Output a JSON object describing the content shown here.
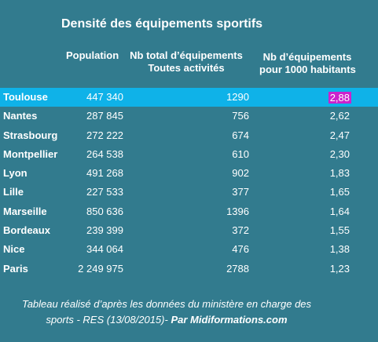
{
  "chart_data": {
    "type": "table",
    "title": "Densité des équipements sportifs",
    "columns": [
      "Population",
      "Nb total d'équipements\nToutes activités",
      "Nb d'équipements\npour 1000 habitants"
    ],
    "highlight_row": "Toulouse",
    "highlight_color": "#0fb2e8",
    "highlight_value_color": "#cc22cc",
    "background_color": "#327b8e",
    "rows": [
      {
        "city": "Toulouse",
        "population": "447 340",
        "equipements": "1290",
        "ratio": "2,88"
      },
      {
        "city": "Nantes",
        "population": "287 845",
        "equipements": "756",
        "ratio": "2,62"
      },
      {
        "city": "Strasbourg",
        "population": "272 222",
        "equipements": "674",
        "ratio": "2,47"
      },
      {
        "city": "Montpellier",
        "population": "264 538",
        "equipements": "610",
        "ratio": "2,30"
      },
      {
        "city": "Lyon",
        "population": "491 268",
        "equipements": "902",
        "ratio": "1,83"
      },
      {
        "city": "Lille",
        "population": "227 533",
        "equipements": "377",
        "ratio": "1,65"
      },
      {
        "city": "Marseille",
        "population": "850 636",
        "equipements": "1396",
        "ratio": "1,64"
      },
      {
        "city": "Bordeaux",
        "population": "239 399",
        "equipements": "372",
        "ratio": "1,55"
      },
      {
        "city": "Nice",
        "population": "344 064",
        "equipements": "476",
        "ratio": "1,38"
      },
      {
        "city": "Paris",
        "population": "2 249 975",
        "equipements": "2788",
        "ratio": "1,23"
      }
    ]
  },
  "footer": {
    "line1": "Tableau réalisé d’après les données du ministère en charge des",
    "line2": "sports - RES (13/08/2015)- ",
    "credit": "Par Midiformations.com"
  },
  "headers": {
    "population": "Population",
    "equipements_l1": "Nb total d’équipements",
    "equipements_l2": "Toutes activités",
    "ratio_l1": "Nb d’équipements",
    "ratio_l2": "pour 1000 habitants"
  }
}
